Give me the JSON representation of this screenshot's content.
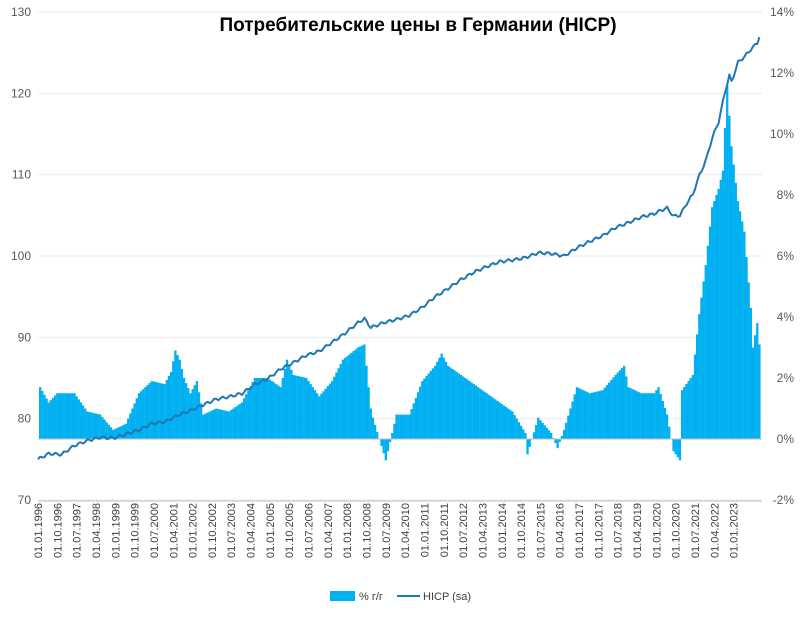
{
  "chart_data": {
    "type": "bar+line",
    "title": "Потребительские цены в Германии (HICP)",
    "x_categories": [
      "01.01.1996",
      "01.10.1996",
      "01.07.1997",
      "01.04.1998",
      "01.01.1999",
      "01.10.1999",
      "01.07.2000",
      "01.04.2001",
      "01.01.2002",
      "01.10.2002",
      "01.07.2003",
      "01.04.2004",
      "01.01.2005",
      "01.10.2005",
      "01.07.2006",
      "01.04.2007",
      "01.01.2008",
      "01.10.2008",
      "01.07.2009",
      "01.04.2010",
      "01.01.2011",
      "01.10.2011",
      "01.07.2012",
      "01.04.2013",
      "01.01.2014",
      "01.10.2014",
      "01.07.2015",
      "01.04.2016",
      "01.01.2017",
      "01.10.2017",
      "01.07.2018",
      "01.04.2019",
      "01.01.2020",
      "01.10.2020",
      "01.07.2021",
      "01.04.2022",
      "01.01.2023"
    ],
    "y_left": {
      "min": 70,
      "max": 130,
      "ticks": [
        "70",
        "80",
        "90",
        "100",
        "110",
        "120",
        "130"
      ]
    },
    "y_right": {
      "min": -2,
      "max": 14,
      "ticks": [
        "-2%",
        "0%",
        "2%",
        "4%",
        "6%",
        "8%",
        "10%",
        "12%",
        "14%"
      ]
    },
    "grid": true,
    "legend_position": "bottom",
    "series": [
      {
        "name": "% г/г",
        "type": "bar",
        "axis": "right",
        "color": "#00b0f0",
        "period": "monthly",
        "start": "1996-01",
        "anchors": [
          [
            "1996-01",
            0.0
          ],
          [
            "1996-02",
            1.7
          ],
          [
            "1996-06",
            1.2
          ],
          [
            "1996-10",
            1.5
          ],
          [
            "1997-06",
            1.5
          ],
          [
            "1997-12",
            0.9
          ],
          [
            "1998-06",
            0.8
          ],
          [
            "1998-12",
            0.3
          ],
          [
            "1999-06",
            0.5
          ],
          [
            "1999-12",
            1.5
          ],
          [
            "2000-06",
            1.9
          ],
          [
            "2000-12",
            1.8
          ],
          [
            "2001-03",
            2.2
          ],
          [
            "2001-05",
            2.9
          ],
          [
            "2001-07",
            2.6
          ],
          [
            "2001-09",
            2.0
          ],
          [
            "2001-12",
            1.5
          ],
          [
            "2002-03",
            1.9
          ],
          [
            "2002-06",
            0.8
          ],
          [
            "2002-12",
            1.0
          ],
          [
            "2003-06",
            0.9
          ],
          [
            "2003-12",
            1.2
          ],
          [
            "2004-06",
            2.0
          ],
          [
            "2004-12",
            2.0
          ],
          [
            "2005-06",
            1.7
          ],
          [
            "2005-09",
            2.6
          ],
          [
            "2005-12",
            2.1
          ],
          [
            "2006-06",
            2.0
          ],
          [
            "2006-12",
            1.4
          ],
          [
            "2007-06",
            1.9
          ],
          [
            "2007-11",
            2.6
          ],
          [
            "2008-06",
            3.0
          ],
          [
            "2008-09",
            3.1
          ],
          [
            "2008-12",
            1.0
          ],
          [
            "2009-01",
            0.7
          ],
          [
            "2009-07",
            -0.7
          ],
          [
            "2009-12",
            0.8
          ],
          [
            "2010-06",
            0.8
          ],
          [
            "2010-12",
            1.9
          ],
          [
            "2011-06",
            2.4
          ],
          [
            "2011-09",
            2.8
          ],
          [
            "2011-12",
            2.4
          ],
          [
            "2012-06",
            2.1
          ],
          [
            "2012-12",
            1.8
          ],
          [
            "2013-06",
            1.5
          ],
          [
            "2013-12",
            1.2
          ],
          [
            "2014-06",
            0.9
          ],
          [
            "2014-12",
            0.2
          ],
          [
            "2015-01",
            -0.5
          ],
          [
            "2015-06",
            0.7
          ],
          [
            "2015-12",
            0.2
          ],
          [
            "2016-03",
            -0.3
          ],
          [
            "2016-06",
            0.3
          ],
          [
            "2016-12",
            1.7
          ],
          [
            "2017-06",
            1.5
          ],
          [
            "2017-12",
            1.6
          ],
          [
            "2018-06",
            2.1
          ],
          [
            "2018-10",
            2.4
          ],
          [
            "2018-12",
            1.7
          ],
          [
            "2019-06",
            1.5
          ],
          [
            "2019-12",
            1.5
          ],
          [
            "2020-02",
            1.7
          ],
          [
            "2020-06",
            0.8
          ],
          [
            "2020-09",
            -0.4
          ],
          [
            "2020-12",
            -0.7
          ],
          [
            "2021-01",
            1.6
          ],
          [
            "2021-06",
            2.1
          ],
          [
            "2021-09",
            4.1
          ],
          [
            "2021-12",
            5.7
          ],
          [
            "2022-03",
            7.6
          ],
          [
            "2022-06",
            8.2
          ],
          [
            "2022-08",
            8.8
          ],
          [
            "2022-10",
            11.6
          ],
          [
            "2022-12",
            9.6
          ],
          [
            "2023-03",
            7.8
          ],
          [
            "2023-06",
            6.8
          ],
          [
            "2023-09",
            4.3
          ],
          [
            "2023-10",
            3.0
          ],
          [
            "2023-12",
            3.8
          ],
          [
            "2024-01",
            3.1
          ]
        ]
      },
      {
        "name": "HICP (sa)",
        "type": "line",
        "axis": "left",
        "color": "#1f77b4",
        "period": "monthly",
        "start": "1996-01",
        "anchors": [
          [
            "1996-01",
            75.0
          ],
          [
            "1996-06",
            75.7
          ],
          [
            "1996-12",
            75.6
          ],
          [
            "1997-06",
            76.7
          ],
          [
            "1997-12",
            77.3
          ],
          [
            "1998-06",
            77.7
          ],
          [
            "1998-12",
            77.6
          ],
          [
            "1999-06",
            78.1
          ],
          [
            "1999-12",
            78.6
          ],
          [
            "2000-06",
            79.4
          ],
          [
            "2000-12",
            79.6
          ],
          [
            "2001-06",
            80.4
          ],
          [
            "2001-12",
            81.0
          ],
          [
            "2002-06",
            81.7
          ],
          [
            "2002-12",
            82.4
          ],
          [
            "2003-06",
            82.7
          ],
          [
            "2003-12",
            83.1
          ],
          [
            "2004-06",
            84.2
          ],
          [
            "2004-12",
            84.9
          ],
          [
            "2005-06",
            86.1
          ],
          [
            "2005-12",
            86.9
          ],
          [
            "2006-06",
            87.8
          ],
          [
            "2006-12",
            88.3
          ],
          [
            "2007-06",
            89.4
          ],
          [
            "2007-12",
            90.5
          ],
          [
            "2008-06",
            91.8
          ],
          [
            "2008-09",
            92.3
          ],
          [
            "2008-12",
            91.2
          ],
          [
            "2009-06",
            91.8
          ],
          [
            "2009-12",
            92.2
          ],
          [
            "2010-06",
            92.7
          ],
          [
            "2010-12",
            93.7
          ],
          [
            "2011-06",
            95.0
          ],
          [
            "2011-12",
            96.0
          ],
          [
            "2012-06",
            97.1
          ],
          [
            "2012-12",
            98.0
          ],
          [
            "2013-06",
            98.7
          ],
          [
            "2013-12",
            99.3
          ],
          [
            "2014-06",
            99.5
          ],
          [
            "2014-12",
            99.8
          ],
          [
            "2015-06",
            100.4
          ],
          [
            "2015-12",
            100.3
          ],
          [
            "2016-06",
            100.0
          ],
          [
            "2016-12",
            101.0
          ],
          [
            "2017-06",
            101.8
          ],
          [
            "2017-12",
            102.5
          ],
          [
            "2018-06",
            103.5
          ],
          [
            "2018-12",
            104.1
          ],
          [
            "2019-06",
            104.8
          ],
          [
            "2019-12",
            105.2
          ],
          [
            "2020-03",
            105.6
          ],
          [
            "2020-06",
            105.9
          ],
          [
            "2020-09",
            104.9
          ],
          [
            "2020-12",
            105.0
          ],
          [
            "2021-03",
            106.4
          ],
          [
            "2021-06",
            107.6
          ],
          [
            "2021-09",
            109.9
          ],
          [
            "2021-12",
            111.7
          ],
          [
            "2022-03",
            114.5
          ],
          [
            "2022-06",
            116.5
          ],
          [
            "2022-09",
            120.2
          ],
          [
            "2022-11",
            122.2
          ],
          [
            "2022-12",
            121.4
          ],
          [
            "2023-03",
            123.8
          ],
          [
            "2023-06",
            124.5
          ],
          [
            "2023-09",
            125.4
          ],
          [
            "2023-12",
            126.2
          ],
          [
            "2024-01",
            127.0
          ]
        ]
      }
    ]
  }
}
